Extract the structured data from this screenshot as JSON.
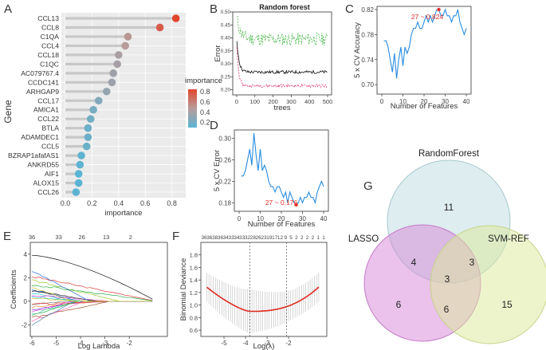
{
  "chart_data": [
    {
      "panel": "A",
      "type": "lollipop",
      "ylabel": "Gene",
      "xlabel": "importance",
      "xlim": [
        0,
        0.85
      ],
      "xticks": [
        "0.0",
        "0.2",
        "0.4",
        "0.6",
        "0.8"
      ],
      "legend_title": "importance",
      "legend_ticks": [
        "0.8",
        "0.6",
        "0.4",
        "0.2"
      ],
      "genes": [
        "CCL13",
        "CCL8",
        "C1QA",
        "CCL4",
        "CCL18",
        "C1QC",
        "AC079767.4",
        "CCDC141",
        "ARHGAP9",
        "CCL17",
        "AMICA1",
        "CCL22",
        "BTLA",
        "ADAMDEC1",
        "CCL5",
        "BZRAP1afafAS1",
        "ANKRD55",
        "AIF1",
        "ALOX15",
        "CCL26"
      ],
      "values": [
        0.83,
        0.71,
        0.47,
        0.45,
        0.4,
        0.39,
        0.36,
        0.35,
        0.31,
        0.25,
        0.21,
        0.19,
        0.17,
        0.17,
        0.16,
        0.12,
        0.11,
        0.1,
        0.1,
        0.08
      ]
    },
    {
      "panel": "B",
      "type": "line",
      "title": "Random forest",
      "xlabel": "trees",
      "ylabel": "Error",
      "xlim": [
        0,
        500
      ],
      "ylim": [
        0.18,
        0.5
      ],
      "xticks": [
        "0",
        "100",
        "200",
        "300",
        "400",
        "500"
      ],
      "yticks": [
        "0.20",
        "0.25",
        "0.30",
        "0.35",
        "0.40",
        "0.45",
        "0.50"
      ]
    },
    {
      "panel": "C",
      "type": "line",
      "xlabel": "Number of Features",
      "ylabel": "5 x CV Accuracy",
      "xlim": [
        0,
        40
      ],
      "ylim": [
        0.69,
        0.82
      ],
      "xticks": [
        "0",
        "10",
        "20",
        "30",
        "40"
      ],
      "yticks": [
        "0.70",
        "0.74",
        "0.78",
        "0.82"
      ],
      "annotation": "27 ~ 0.824",
      "x": [
        1,
        2,
        3,
        4,
        5,
        6,
        7,
        8,
        9,
        10,
        11,
        12,
        13,
        14,
        15,
        16,
        17,
        18,
        19,
        20,
        21,
        22,
        23,
        24,
        25,
        26,
        27,
        28,
        29,
        30,
        31,
        32,
        33,
        34,
        35,
        36,
        37,
        38,
        39,
        40
      ],
      "values": [
        0.77,
        0.77,
        0.76,
        0.74,
        0.72,
        0.75,
        0.71,
        0.74,
        0.76,
        0.73,
        0.76,
        0.75,
        0.76,
        0.78,
        0.79,
        0.79,
        0.8,
        0.79,
        0.79,
        0.8,
        0.81,
        0.8,
        0.81,
        0.8,
        0.81,
        0.82,
        0.82,
        0.81,
        0.81,
        0.82,
        0.81,
        0.81,
        0.8,
        0.81,
        0.81,
        0.82,
        0.8,
        0.79,
        0.78,
        0.79
      ]
    },
    {
      "panel": "D",
      "type": "line",
      "xlabel": "Number of Features",
      "ylabel": "5 x CV Error",
      "xlim": [
        0,
        40
      ],
      "ylim": [
        0.17,
        0.31
      ],
      "xticks": [
        "0",
        "10",
        "20",
        "30",
        "40"
      ],
      "yticks": [
        "0.18",
        "0.22",
        "0.26",
        "0.30"
      ],
      "annotation": "27 ~ 0.176",
      "x": [
        1,
        2,
        3,
        4,
        5,
        6,
        7,
        8,
        9,
        10,
        11,
        12,
        13,
        14,
        15,
        16,
        17,
        18,
        19,
        20,
        21,
        22,
        23,
        24,
        25,
        26,
        27,
        28,
        29,
        30,
        31,
        32,
        33,
        34,
        35,
        36,
        37,
        38,
        39,
        40
      ],
      "values": [
        0.23,
        0.23,
        0.24,
        0.26,
        0.28,
        0.25,
        0.31,
        0.27,
        0.24,
        0.28,
        0.24,
        0.25,
        0.24,
        0.22,
        0.21,
        0.21,
        0.2,
        0.21,
        0.21,
        0.2,
        0.19,
        0.2,
        0.18,
        0.2,
        0.19,
        0.18,
        0.176,
        0.18,
        0.19,
        0.18,
        0.19,
        0.19,
        0.2,
        0.19,
        0.19,
        0.18,
        0.2,
        0.21,
        0.22,
        0.21
      ]
    },
    {
      "panel": "E",
      "type": "line",
      "xlabel": "Log Lambda",
      "ylabel": "Coefficients",
      "xlim": [
        -6,
        -0.5
      ],
      "ylim": [
        -3,
        5
      ],
      "xticks": [
        "-6",
        "-5",
        "-4",
        "-3",
        "-2"
      ],
      "yticks": [
        "-2",
        "0",
        "2",
        "4"
      ],
      "top_axis": [
        "36",
        "33",
        "26",
        "13",
        "2"
      ]
    },
    {
      "panel": "F",
      "type": "line",
      "xlabel": "Log(λ)",
      "ylabel": "Binomial Deviance",
      "xlim": [
        -6,
        -0.3
      ],
      "ylim": [
        0.5,
        2.0
      ],
      "xticks": [
        "-5",
        "-4",
        "-3",
        "-2"
      ],
      "yticks": [
        "0.6",
        "0.8",
        "1.0",
        "1.2",
        "1.4",
        "1.6",
        "1.8"
      ],
      "top_axis": [
        "36",
        "36",
        "38",
        "36",
        "34",
        "33",
        "34",
        "33",
        "32",
        "28",
        "26",
        "23",
        "19",
        "17",
        "12",
        "9",
        "5",
        "2",
        "2",
        "2",
        "2",
        "1",
        "1"
      ],
      "lambda_min": -3.8,
      "lambda_1se": -2.1
    },
    {
      "panel": "G",
      "type": "venn",
      "sets": [
        "RandomForest",
        "LASSO",
        "SVM-REF"
      ],
      "only_rf": "11",
      "lasso_rf": "4",
      "rf_svm": "3",
      "all": "3",
      "only_lasso": "6",
      "lasso_svm": "6",
      "only_svm": "15"
    }
  ]
}
